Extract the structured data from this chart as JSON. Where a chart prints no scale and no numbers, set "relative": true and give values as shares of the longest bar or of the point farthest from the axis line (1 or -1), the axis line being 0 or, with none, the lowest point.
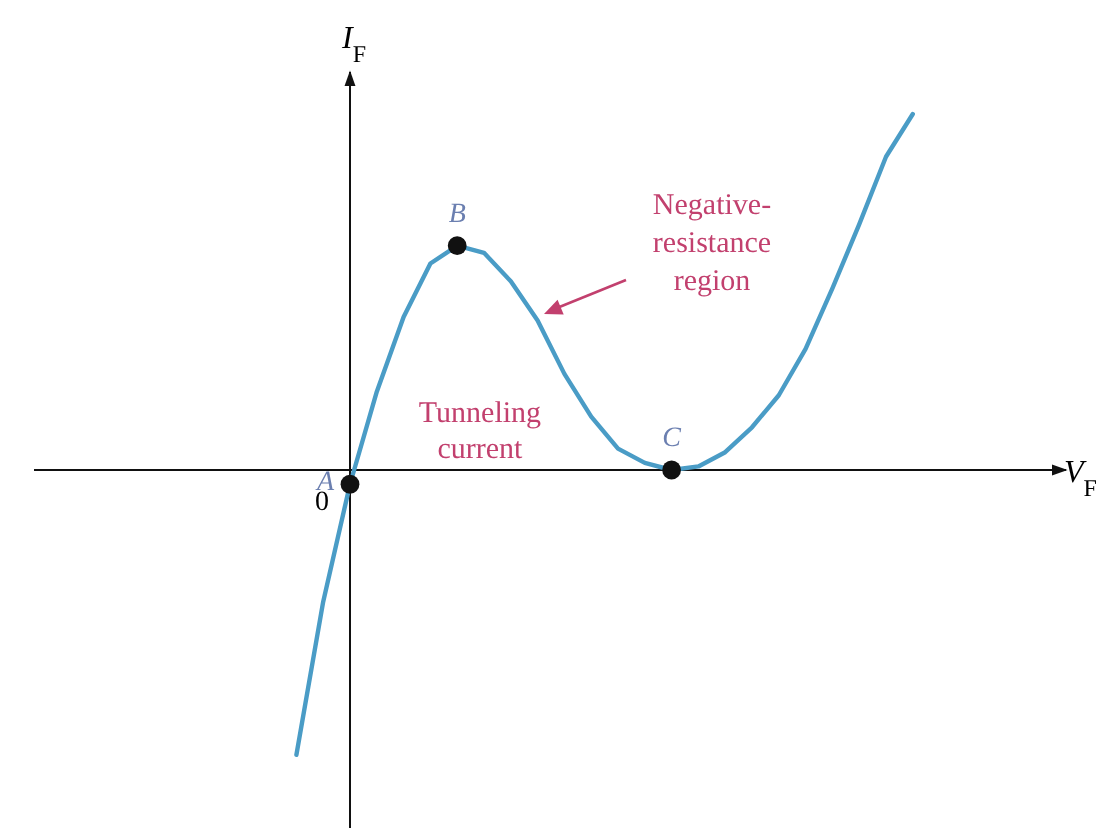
{
  "chart_data": {
    "type": "line",
    "relative": true,
    "xlabel": "V$_{F}$",
    "ylabel": "I$_{F}$",
    "categories": [
      null,
      null,
      null,
      null,
      null,
      null,
      null,
      null,
      null,
      null,
      null,
      null,
      null,
      null,
      null,
      null,
      null,
      null,
      null,
      null,
      null,
      null,
      null,
      null
    ],
    "series": [
      {
        "color": "#4a9cc6",
        "values": [
          -0.8,
          -0.37,
          -0.04,
          0.22,
          0.43,
          0.58,
          0.63,
          0.61,
          0.53,
          0.42,
          0.27,
          0.15,
          0.06,
          0.02,
          0.0,
          0.01,
          0.05,
          0.12,
          0.21,
          0.34,
          0.51,
          0.69,
          0.88,
          1.0
        ]
      }
    ],
    "annotations": [
      "A",
      "B",
      "C",
      "Negative-resistance region",
      "Tunneling current",
      "0"
    ]
  }
}
